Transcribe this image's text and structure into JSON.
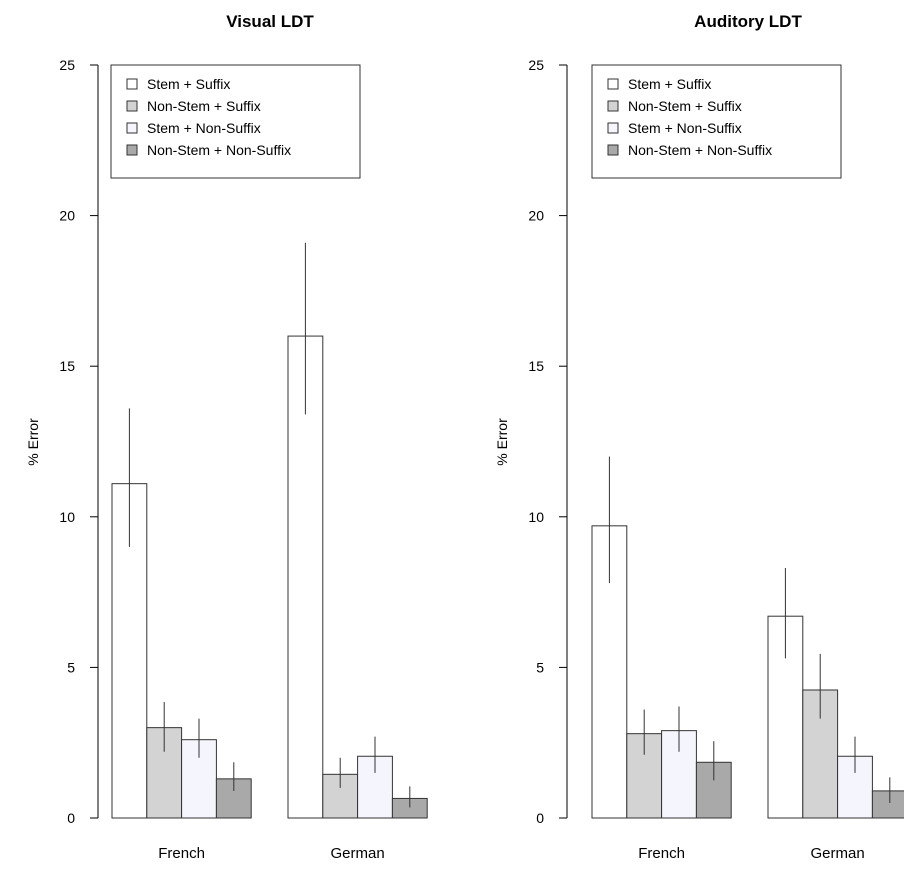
{
  "chart_data": [
    {
      "type": "bar",
      "title": "Visual LDT",
      "ylabel": "% Error",
      "xlabel": "",
      "ylim": [
        0,
        25
      ],
      "yticks": [
        "0",
        "5",
        "10",
        "15",
        "20",
        "25"
      ],
      "categories": [
        "French",
        "German"
      ],
      "legend": {
        "placement": "top-left",
        "entries": [
          "Stem + Suffix",
          "Non-Stem + Suffix",
          "Stem + Non-Suffix",
          "Non-Stem + Non-Suffix"
        ]
      },
      "series": [
        {
          "name": "Stem + Suffix",
          "color": "#ffffff",
          "values": [
            11.1,
            16.0
          ],
          "err_low": [
            9.0,
            13.4
          ],
          "err_high": [
            13.6,
            19.1
          ]
        },
        {
          "name": "Non-Stem + Suffix",
          "color": "#d3d3d3",
          "values": [
            3.0,
            1.45
          ],
          "err_low": [
            2.2,
            1.0
          ],
          "err_high": [
            3.85,
            2.0
          ]
        },
        {
          "name": "Stem + Non-Suffix",
          "color": "#f5f5fd",
          "values": [
            2.6,
            2.05
          ],
          "err_low": [
            2.0,
            1.5
          ],
          "err_high": [
            3.3,
            2.7
          ]
        },
        {
          "name": "Non-Stem + Non-Suffix",
          "color": "#a9a9a9",
          "values": [
            1.3,
            0.65
          ],
          "err_low": [
            0.9,
            0.35
          ],
          "err_high": [
            1.85,
            1.05
          ]
        }
      ],
      "grid": false
    },
    {
      "type": "bar",
      "title": "Auditory LDT",
      "ylabel": "% Error",
      "xlabel": "",
      "ylim": [
        0,
        25
      ],
      "yticks": [
        "0",
        "5",
        "10",
        "15",
        "20",
        "25"
      ],
      "categories": [
        "French",
        "German"
      ],
      "legend": {
        "placement": "top-left",
        "entries": [
          "Stem + Suffix",
          "Non-Stem + Suffix",
          "Stem + Non-Suffix",
          "Non-Stem + Non-Suffix"
        ]
      },
      "series": [
        {
          "name": "Stem + Suffix",
          "color": "#ffffff",
          "values": [
            9.7,
            6.7
          ],
          "err_low": [
            7.8,
            5.3
          ],
          "err_high": [
            12.0,
            8.3
          ]
        },
        {
          "name": "Non-Stem + Suffix",
          "color": "#d3d3d3",
          "values": [
            2.8,
            4.25
          ],
          "err_low": [
            2.1,
            3.3
          ],
          "err_high": [
            3.6,
            5.45
          ]
        },
        {
          "name": "Stem + Non-Suffix",
          "color": "#f5f5fd",
          "values": [
            2.9,
            2.05
          ],
          "err_low": [
            2.2,
            1.5
          ],
          "err_high": [
            3.7,
            2.7
          ]
        },
        {
          "name": "Non-Stem + Non-Suffix",
          "color": "#a9a9a9",
          "values": [
            1.85,
            0.9
          ],
          "err_low": [
            1.25,
            0.5
          ],
          "err_high": [
            2.55,
            1.35
          ]
        }
      ],
      "grid": false
    }
  ]
}
